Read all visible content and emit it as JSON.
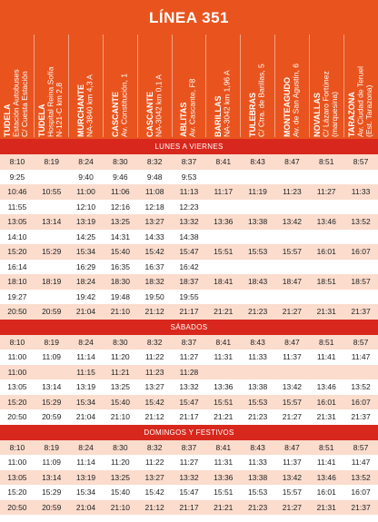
{
  "title": "LÍNEA 351",
  "columns": [
    {
      "town": "TUDELA",
      "stop": [
        "Estación Autobuses",
        "C/ Cuesta Estación"
      ]
    },
    {
      "town": "TUDELA",
      "stop": [
        "Hospital Reina Sofía",
        "N-121-C km 2,8"
      ]
    },
    {
      "town": "MURCHANTE",
      "stop": [
        "NA-3840 km 4,3 A"
      ]
    },
    {
      "town": "CASCANTE",
      "stop": [
        "Av. Constitución, 1"
      ]
    },
    {
      "town": "CASCANTE",
      "stop": [
        "NA-3042 km 0,1 A"
      ]
    },
    {
      "town": "ABLITAS",
      "stop": [
        "Av. Cascante, F8"
      ]
    },
    {
      "town": "BARILLAS",
      "stop": [
        "NA-3042 km 1,96 A"
      ]
    },
    {
      "town": "TULEBRAS",
      "stop": [
        "C/ Ctra. de Barillas, 5"
      ]
    },
    {
      "town": "MONTEAGUDO",
      "stop": [
        "Av. de San Agustín, 6"
      ]
    },
    {
      "town": "NOVALLAS",
      "stop": [
        "C/ Lázaro Fortúnez",
        "(marquesina)"
      ]
    },
    {
      "town": "TARAZONA",
      "stop": [
        "Av. Ciudad de Teruel",
        "(Est. Tarazona)"
      ]
    }
  ],
  "sections": [
    {
      "name": "LUNES A VIERNES",
      "rows": [
        [
          "8:10",
          "8:19",
          "8:24",
          "8:30",
          "8:32",
          "8:37",
          "8:41",
          "8:43",
          "8:47",
          "8:51",
          "8:57"
        ],
        [
          "9:25",
          null,
          "9:40",
          "9:46",
          "9:48",
          "9:53",
          null,
          null,
          null,
          null,
          null
        ],
        [
          "10:46",
          "10:55",
          "11:00",
          "11:06",
          "11:08",
          "11:13",
          "11:17",
          "11:19",
          "11:23",
          "11:27",
          "11:33"
        ],
        [
          "11:55",
          null,
          "12:10",
          "12:16",
          "12:18",
          "12:23",
          null,
          null,
          null,
          null,
          null
        ],
        [
          "13:05",
          "13:14",
          "13:19",
          "13:25",
          "13:27",
          "13:32",
          "13:36",
          "13:38",
          "13:42",
          "13:46",
          "13:52"
        ],
        [
          "14:10",
          null,
          "14:25",
          "14:31",
          "14:33",
          "14:38",
          null,
          null,
          null,
          null,
          null
        ],
        [
          "15:20",
          "15:29",
          "15:34",
          "15:40",
          "15:42",
          "15:47",
          "15:51",
          "15:53",
          "15:57",
          "16:01",
          "16:07"
        ],
        [
          "16:14",
          null,
          "16:29",
          "16:35",
          "16:37",
          "16:42",
          null,
          null,
          null,
          null,
          null
        ],
        [
          "18:10",
          "18:19",
          "18:24",
          "18:30",
          "18:32",
          "18:37",
          "18:41",
          "18:43",
          "18:47",
          "18:51",
          "18:57"
        ],
        [
          "19:27",
          null,
          "19:42",
          "19:48",
          "19:50",
          "19:55",
          null,
          null,
          null,
          null,
          null
        ],
        [
          "20:50",
          "20:59",
          "21:04",
          "21:10",
          "21:12",
          "21:17",
          "21:21",
          "21:23",
          "21:27",
          "21:31",
          "21:37"
        ]
      ]
    },
    {
      "name": "SÁBADOS",
      "rows": [
        [
          "8:10",
          "8:19",
          "8:24",
          "8:30",
          "8:32",
          "8:37",
          "8:41",
          "8:43",
          "8:47",
          "8:51",
          "8:57"
        ],
        [
          "11:00",
          "11:09",
          "11:14",
          "11:20",
          "11:22",
          "11:27",
          "11:31",
          "11:33",
          "11:37",
          "11:41",
          "11:47"
        ],
        [
          "11:00",
          null,
          "11:15",
          "11:21",
          "11:23",
          "11:28",
          null,
          null,
          null,
          null,
          null
        ],
        [
          "13:05",
          "13:14",
          "13:19",
          "13:25",
          "13:27",
          "13:32",
          "13:36",
          "13:38",
          "13:42",
          "13:46",
          "13:52"
        ],
        [
          "15:20",
          "15:29",
          "15:34",
          "15:40",
          "15:42",
          "15:47",
          "15:51",
          "15:53",
          "15:57",
          "16:01",
          "16:07"
        ],
        [
          "20:50",
          "20:59",
          "21:04",
          "21:10",
          "21:12",
          "21:17",
          "21:21",
          "21:23",
          "21:27",
          "21:31",
          "21:37"
        ]
      ]
    },
    {
      "name": "DOMINGOS Y FESTIVOS",
      "rows": [
        [
          "8:10",
          "8:19",
          "8:24",
          "8:30",
          "8:32",
          "8:37",
          "8:41",
          "8:43",
          "8:47",
          "8:51",
          "8:57"
        ],
        [
          "11:00",
          "11:09",
          "11:14",
          "11:20",
          "11:22",
          "11:27",
          "11:31",
          "11:33",
          "11:37",
          "11:41",
          "11:47"
        ],
        [
          "13:05",
          "13:14",
          "13:19",
          "13:25",
          "13:27",
          "13:32",
          "13:36",
          "13:38",
          "13:42",
          "13:46",
          "13:52"
        ],
        [
          "15:20",
          "15:29",
          "15:34",
          "15:40",
          "15:42",
          "15:47",
          "15:51",
          "15:53",
          "15:57",
          "16:01",
          "16:07"
        ],
        [
          "20:50",
          "20:59",
          "21:04",
          "21:10",
          "21:12",
          "21:17",
          "21:21",
          "21:23",
          "21:27",
          "21:31",
          "21:37"
        ]
      ]
    }
  ]
}
